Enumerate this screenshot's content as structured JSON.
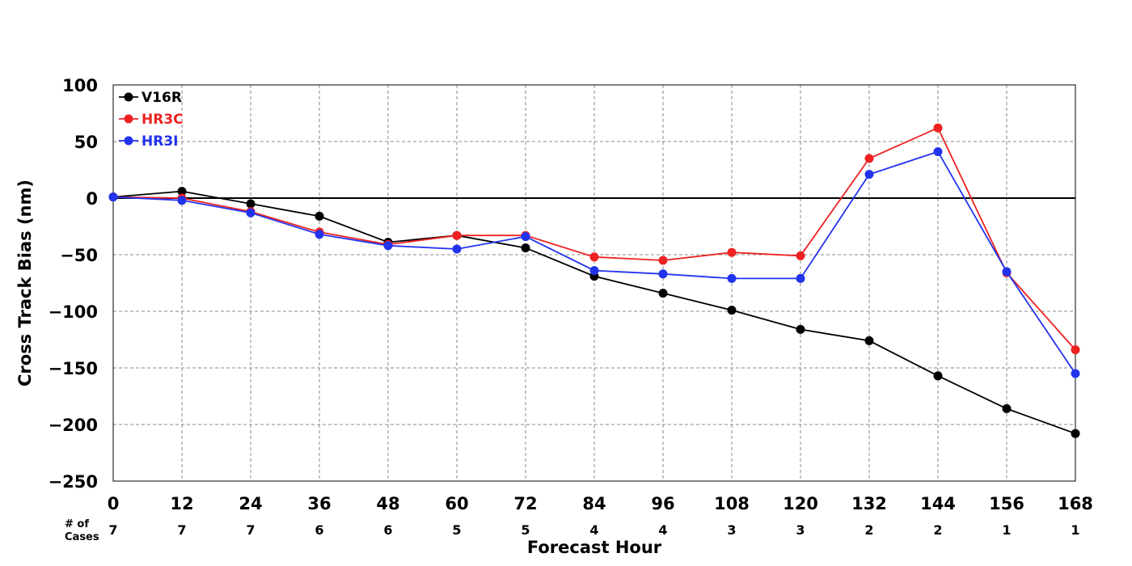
{
  "chart_data": {
    "type": "line",
    "xlabel": "Forecast Hour",
    "ylabel": "Cross Track Bias (nm)",
    "x": [
      0,
      12,
      24,
      36,
      48,
      60,
      72,
      84,
      96,
      108,
      120,
      132,
      144,
      156,
      168
    ],
    "xlim": [
      0,
      168
    ],
    "ylim": [
      -250,
      100
    ],
    "yticks": [
      100,
      50,
      0,
      -50,
      -100,
      -150,
      -200,
      -250
    ],
    "ytick_labels": [
      "100",
      "50",
      "0",
      "−50",
      "−100",
      "−150",
      "−200",
      "−250"
    ],
    "grid": true,
    "zero_line": true,
    "legend_position": "top-left",
    "cases_label": [
      "# of",
      "Cases"
    ],
    "cases": [
      7,
      7,
      7,
      6,
      6,
      5,
      5,
      4,
      4,
      3,
      3,
      2,
      2,
      1,
      1
    ],
    "series": [
      {
        "name": "V16R",
        "color": "#000000",
        "values": [
          1,
          6,
          -5,
          -16,
          -39,
          -33,
          -44,
          -69,
          -84,
          -99,
          -116,
          -126,
          -157,
          -186,
          -208
        ]
      },
      {
        "name": "HR3C",
        "color": "#ee2222",
        "values": [
          1,
          0,
          -12,
          -30,
          -41,
          -33,
          -33,
          -52,
          -55,
          -48,
          -51,
          35,
          62,
          -66,
          -134
        ]
      },
      {
        "name": "HR3I",
        "color": "#2233ee",
        "values": [
          1,
          -2,
          -13,
          -32,
          -42,
          -45,
          -34,
          -64,
          -67,
          -71,
          -71,
          21,
          41,
          -65,
          -155
        ]
      }
    ]
  }
}
